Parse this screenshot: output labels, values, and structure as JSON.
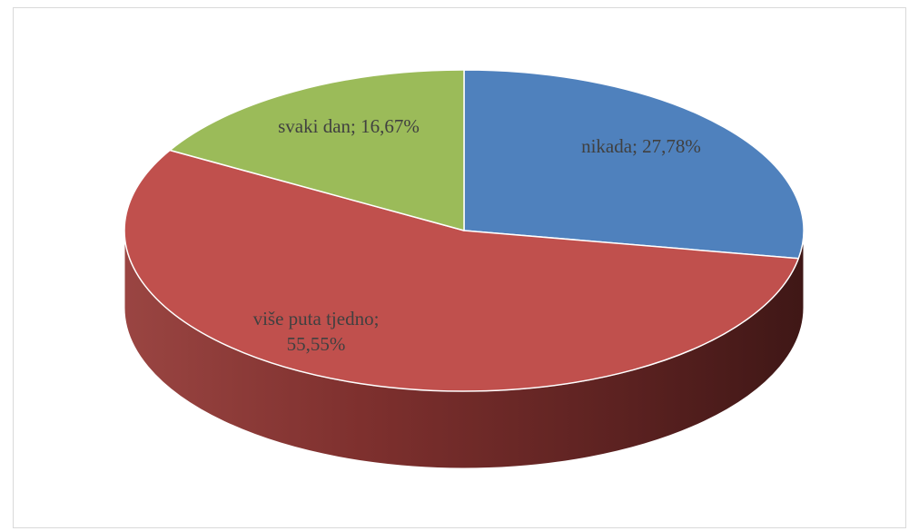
{
  "chart_data": {
    "type": "pie",
    "style": "3d",
    "slices": [
      {
        "label": "nikada",
        "value": 27.78,
        "display": "nikada; 27,78%",
        "color": "#4f81bd"
      },
      {
        "label": "više puta tjedno",
        "value": 55.55,
        "display_lines": [
          "više puta tjedno;",
          "55,55%"
        ],
        "color": "#c0504d"
      },
      {
        "label": "svaki dan",
        "value": 16.67,
        "display": "svaki dan; 16,67%",
        "color": "#9bbb59"
      }
    ],
    "title": "",
    "legend": "none"
  }
}
